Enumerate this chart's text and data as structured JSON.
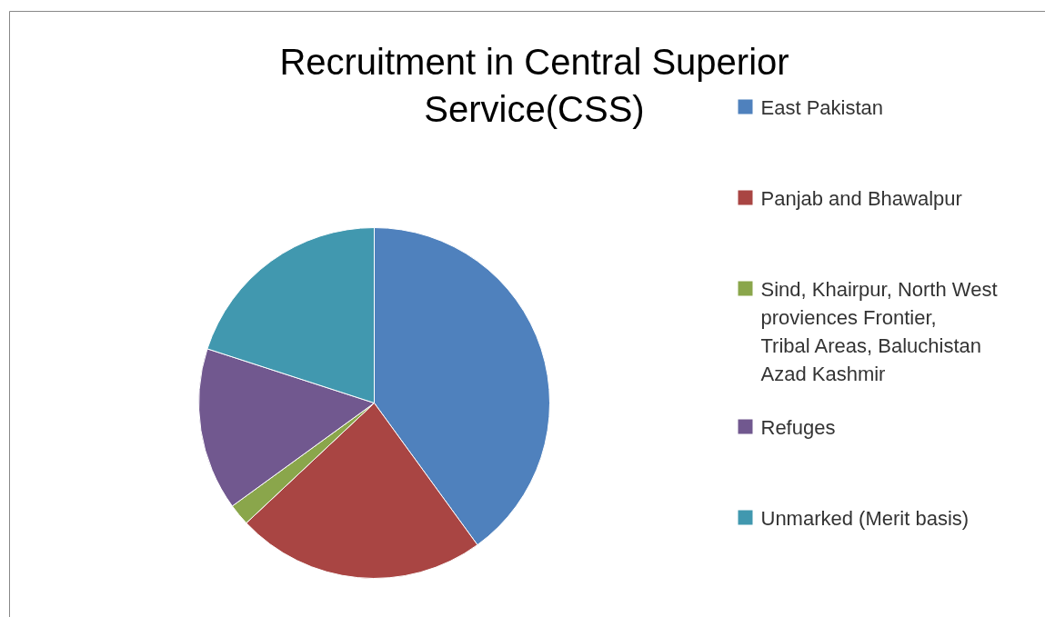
{
  "chart_data": {
    "type": "pie",
    "title": "Recruitment in Central Superior Service(CSS)",
    "categories": [
      "East Pakistan",
      "Panjab and Bhawalpur",
      "Sind, Khairpur, North West proviences Frontier, Tribal Areas, Baluchistan Azad Kashmir",
      "Refuges",
      "Unmarked (Merit basis)"
    ],
    "values": [
      40,
      23,
      2,
      15,
      20
    ],
    "colors": [
      "#4f81bd",
      "#a94543",
      "#8aa64b",
      "#71588f",
      "#4198af"
    ],
    "legend": "right"
  }
}
